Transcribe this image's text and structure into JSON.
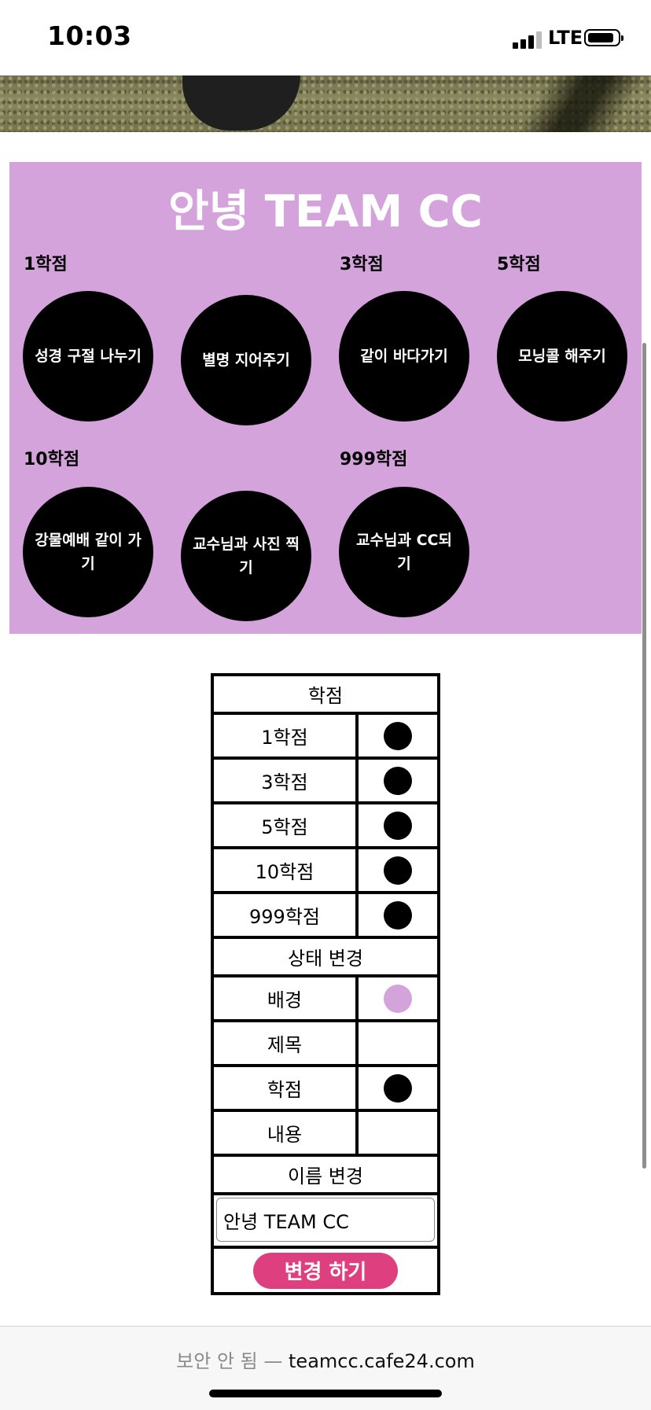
{
  "status": {
    "time": "10:03",
    "network": "LTE"
  },
  "board": {
    "title": "안녕 TEAM CC",
    "background": "#d5a3dc",
    "groups": [
      {
        "grade": "1학점",
        "missions": [
          "성경 구절 나누기",
          "별명 지어주기"
        ]
      },
      {
        "grade": "3학점",
        "missions": [
          "같이 바다가기"
        ]
      },
      {
        "grade": "5학점",
        "missions": [
          "모닝콜 해주기"
        ]
      },
      {
        "grade": "10학점",
        "missions": [
          "강물예배 같이 가기",
          "교수님과 사진 찍기"
        ]
      },
      {
        "grade": "999학점",
        "missions": [
          "교수님과 CC되기"
        ]
      }
    ]
  },
  "settings": {
    "grade_header": "학점",
    "grade_rows": [
      {
        "label": "1학점",
        "color": "#000000"
      },
      {
        "label": "3학점",
        "color": "#000000"
      },
      {
        "label": "5학점",
        "color": "#000000"
      },
      {
        "label": "10학점",
        "color": "#000000"
      },
      {
        "label": "999학점",
        "color": "#000000"
      }
    ],
    "status_header": "상태 변경",
    "status_rows": [
      {
        "label": "배경",
        "color": "#d5a3dc"
      },
      {
        "label": "제목",
        "color": "#ffffff"
      },
      {
        "label": "학점",
        "color": "#000000"
      },
      {
        "label": "내용",
        "color": "#ffffff"
      }
    ],
    "name_header": "이름 변경",
    "name_value": "안녕 TEAM CC",
    "change_button": "변경 하기",
    "button_color": "#de3f7f"
  },
  "urlbar": {
    "security": "보안 안 됨 —",
    "host": "teamcc.cafe24.com"
  }
}
